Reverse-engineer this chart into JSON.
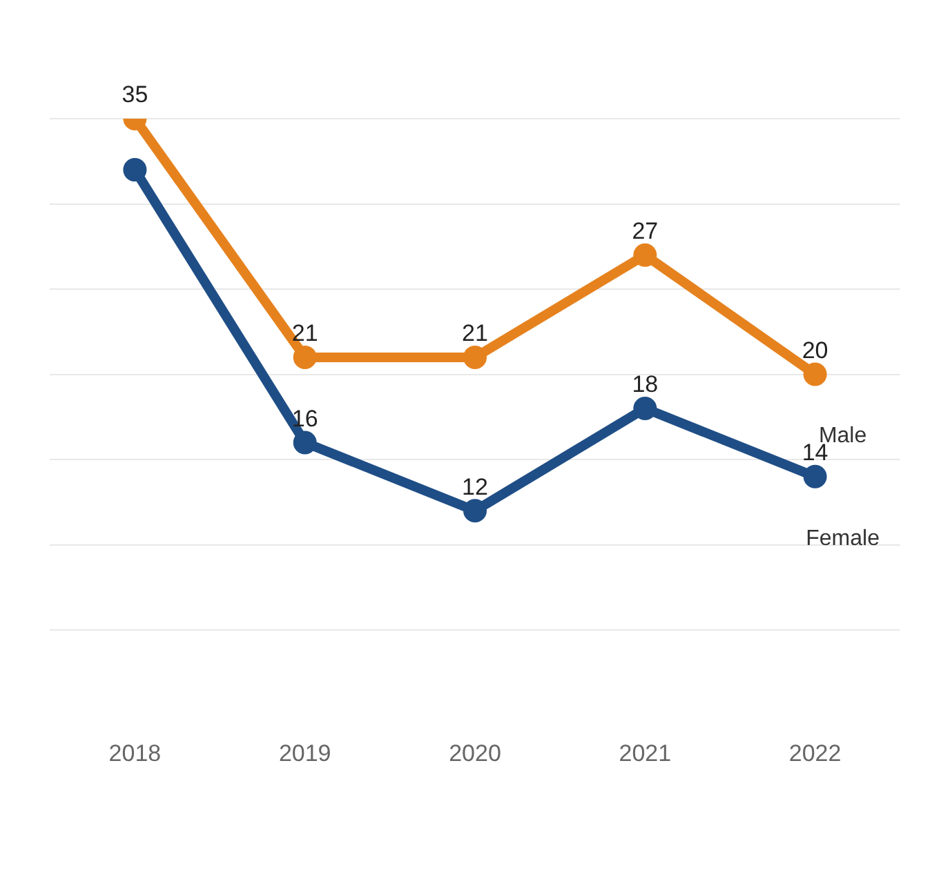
{
  "chart_data": {
    "type": "line",
    "categories": [
      "2018",
      "2019",
      "2020",
      "2021",
      "2022"
    ],
    "series": [
      {
        "name": "Male",
        "color": "#e6821e",
        "values": [
          35,
          21,
          21,
          27,
          20
        ],
        "value_labels": [
          "35",
          "21",
          "21",
          "27",
          "20"
        ]
      },
      {
        "name": "Female",
        "color": "#1f4e86",
        "values": [
          32,
          16,
          12,
          18,
          14
        ],
        "value_labels": [
          null,
          "16",
          "12",
          "18",
          "14"
        ]
      }
    ],
    "yticks": [
      {
        "value": 5,
        "label": null
      },
      {
        "value": 10,
        "label": null
      },
      {
        "value": 15,
        "label": null
      },
      {
        "value": 20,
        "label": null
      },
      {
        "value": 25,
        "label": null
      },
      {
        "value": 30,
        "label": null
      },
      {
        "value": 35,
        "label": null
      }
    ],
    "grid": "y",
    "tick_labels": "x",
    "marker": "circle",
    "line_style": "solid"
  }
}
